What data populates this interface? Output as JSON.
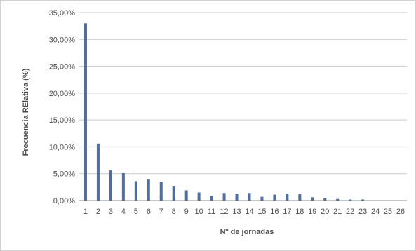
{
  "chart_data": {
    "type": "bar",
    "title": "",
    "xlabel": "Nº de jornadas",
    "ylabel": "Frecuencia RElativa (%)",
    "ylim": [
      0,
      35
    ],
    "yticks": [
      0,
      5,
      10,
      15,
      20,
      25,
      30,
      35
    ],
    "ytick_labels": [
      "0,00%",
      "5,00%",
      "10,00%",
      "15,00%",
      "20,00%",
      "25,00%",
      "30,00%",
      "35,00%"
    ],
    "grid": true,
    "legend": "none",
    "bar_color": "#4f6d9e",
    "categories": [
      "1",
      "2",
      "3",
      "4",
      "5",
      "6",
      "7",
      "8",
      "9",
      "10",
      "11",
      "12",
      "13",
      "14",
      "15",
      "16",
      "17",
      "18",
      "19",
      "20",
      "21",
      "22",
      "23",
      "24",
      "25",
      "26"
    ],
    "values": [
      33.0,
      10.6,
      5.6,
      5.1,
      3.6,
      3.9,
      3.5,
      2.6,
      1.9,
      1.5,
      0.9,
      1.4,
      1.3,
      1.4,
      0.7,
      1.1,
      1.3,
      1.2,
      0.6,
      0.4,
      0.3,
      0.2,
      0.2,
      0.0,
      0.0,
      0.0
    ]
  }
}
